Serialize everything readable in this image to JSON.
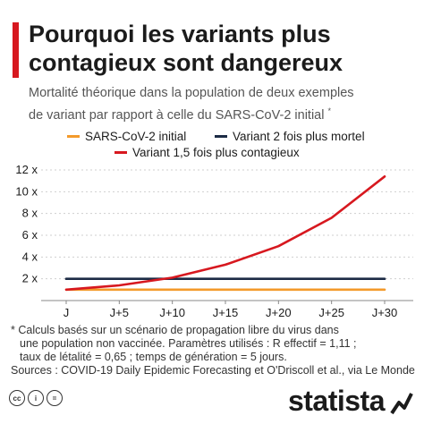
{
  "header": {
    "title_line1": "Pourquoi les variants plus",
    "title_line2": "contagieux sont dangereux",
    "subtitle_line1": "Mortalité théorique dans la population de deux exemples",
    "subtitle_line2": "de variant par rapport à celle du SARS-CoV-2 initial",
    "subtitle_mark": "*"
  },
  "colors": {
    "accent": "#d7181f",
    "baseline": "#f39a2b",
    "deadly": "#1c2b45",
    "contagious": "#d7181f"
  },
  "chart_data": {
    "type": "line",
    "x": [
      "J",
      "J+5",
      "J+10",
      "J+15",
      "J+20",
      "J+25",
      "J+30"
    ],
    "xlim": [
      0,
      30
    ],
    "ylim": [
      0,
      12
    ],
    "y_ticks": [
      2,
      4,
      6,
      8,
      10,
      12
    ],
    "y_tick_labels": [
      "2 x",
      "4 x",
      "6 x",
      "8 x",
      "10 x",
      "12 x"
    ],
    "grid": "horizontal",
    "legend_position": "top",
    "series": [
      {
        "name": "SARS-CoV-2 initial",
        "color": "#f39a2b",
        "points": [
          [
            0,
            1
          ],
          [
            30,
            1
          ]
        ]
      },
      {
        "name": "Variant 2 fois plus mortel",
        "color": "#1c2b45",
        "points": [
          [
            0,
            2
          ],
          [
            30,
            2
          ]
        ]
      },
      {
        "name": "Variant 1,5 fois plus contagieux",
        "color": "#d7181f",
        "points": [
          [
            0,
            1
          ],
          [
            5,
            1.4
          ],
          [
            10,
            2.1
          ],
          [
            15,
            3.3
          ],
          [
            20,
            5.0
          ],
          [
            25,
            7.6
          ],
          [
            30,
            11.4
          ]
        ]
      }
    ]
  },
  "footnote": {
    "line1": "* Calculs basés sur un scénario de propagation libre du virus dans",
    "line2": "une population non vaccinée. Paramètres utilisés : R effectif = 1,11 ;",
    "line3": "taux de létalité = 0,65 ; temps de génération = 5 jours.",
    "line4": "Sources : COVID-19 Daily Epidemic Forecasting et O'Driscoll et al., via Le Monde"
  },
  "footer": {
    "brand": "statista",
    "license_icons": [
      "cc-icon",
      "person-icon",
      "equals-icon"
    ],
    "license_labels": [
      "cc",
      "i",
      "="
    ]
  }
}
